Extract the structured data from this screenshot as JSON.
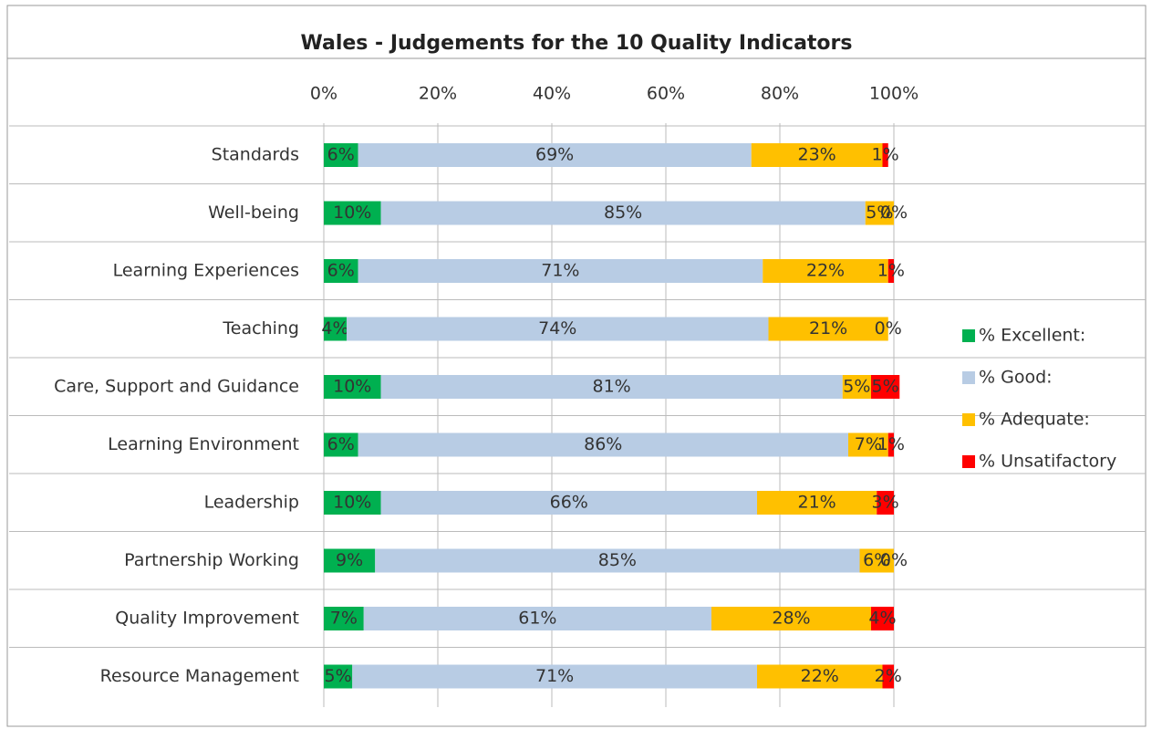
{
  "chart_data": {
    "type": "stacked_bar_horizontal",
    "title": "Wales - Judgements for the 10 Quality Indicators",
    "categories": [
      "Standards",
      "Well-being",
      "Learning Experiences",
      "Teaching",
      "Care, Support and Guidance",
      "Learning Environment",
      "Leadership",
      "Partnership Working",
      "Quality Improvement",
      "Resource Management"
    ],
    "series": [
      {
        "name": "% Excellent:",
        "color": "#00b050",
        "values": [
          6,
          10,
          6,
          4,
          10,
          6,
          10,
          9,
          7,
          5
        ],
        "value_labels": [
          "6%",
          "10%",
          "6%",
          "4%",
          "10%",
          "6%",
          "10%",
          "9%",
          "7%",
          "5%"
        ]
      },
      {
        "name": "% Good:",
        "color": "#b8cce4",
        "values": [
          69,
          85,
          71,
          74,
          81,
          86,
          66,
          85,
          61,
          71
        ],
        "value_labels": [
          "69%",
          "85%",
          "71%",
          "74%",
          "81%",
          "86%",
          "66%",
          "85%",
          "61%",
          "71%"
        ]
      },
      {
        "name": "% Adequate:",
        "color": "#ffc000",
        "values": [
          23,
          5,
          22,
          21,
          5,
          7,
          21,
          6,
          28,
          22
        ],
        "value_labels": [
          "23%",
          "5%",
          "22%",
          "21%",
          "5%",
          "7%",
          "21%",
          "6%",
          "28%",
          "22%"
        ]
      },
      {
        "name": "% Unsatifactory",
        "color": "#ff0000",
        "values": [
          1,
          0,
          1,
          0,
          5,
          1,
          3,
          0,
          4,
          2
        ],
        "value_labels": [
          "1%",
          "0%",
          "1%",
          "0%",
          "5%",
          "1%",
          "3%",
          "0%",
          "4%",
          "2%"
        ]
      }
    ],
    "xlim": [
      0,
      100
    ],
    "xticks": [
      {
        "value": 0,
        "label": "0%"
      },
      {
        "value": 20,
        "label": "20%"
      },
      {
        "value": 40,
        "label": "40%"
      },
      {
        "value": 60,
        "label": "60%"
      },
      {
        "value": 80,
        "label": "80%"
      },
      {
        "value": 100,
        "label": "100%"
      }
    ],
    "grid": true,
    "legend": "right"
  }
}
